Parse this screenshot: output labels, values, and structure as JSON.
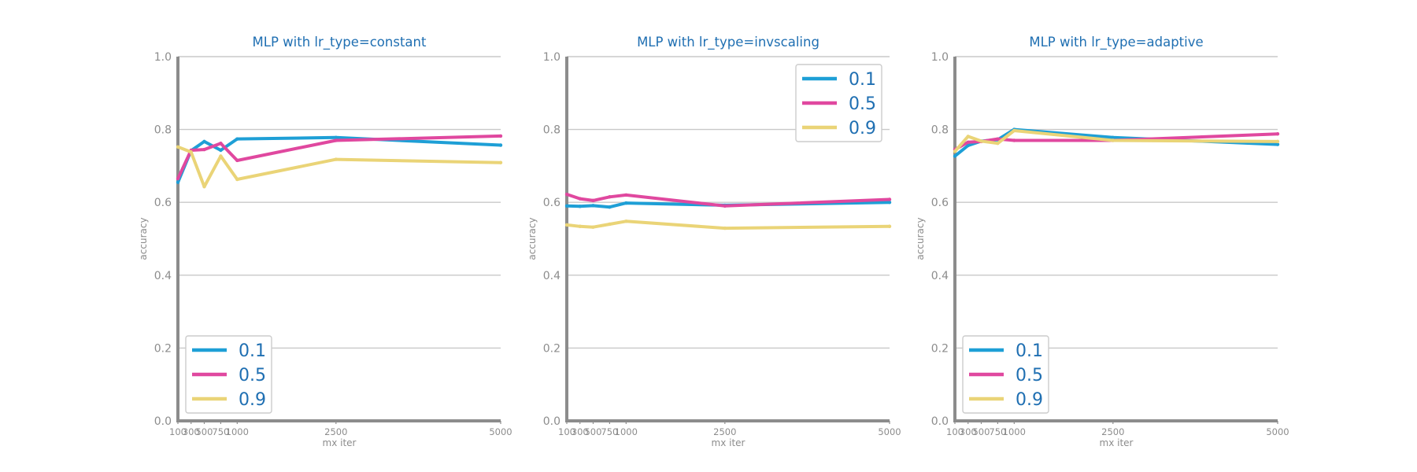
{
  "colors": {
    "title": "#1f6fb2",
    "axis": "#8c8c8c",
    "grid": "#c8c8c8",
    "tick_text": "#8c8c8c",
    "legend_text": "#1f6fb2",
    "series": [
      "#1e9fd6",
      "#e0489f",
      "#ead477"
    ]
  },
  "chart_data": [
    {
      "type": "line",
      "title": "MLP with lr_type=constant",
      "xlabel": "mx iter",
      "ylabel": "accuracy",
      "x": [
        100,
        300,
        500,
        750,
        1000,
        2500,
        5000
      ],
      "x_tick_labels": [
        "100",
        "300",
        "500",
        "750",
        "1000",
        "2500",
        "5000"
      ],
      "ylim": [
        0,
        1
      ],
      "y_ticks": [
        "0.0",
        "0.2",
        "0.4",
        "0.6",
        "0.8",
        "1.0"
      ],
      "grid": "horizontal",
      "legend_position": "lower-left",
      "series": [
        {
          "name": "0.1",
          "values": [
            0.655,
            0.742,
            0.767,
            0.743,
            0.774,
            0.778,
            0.757
          ]
        },
        {
          "name": "0.5",
          "values": [
            0.665,
            0.743,
            0.745,
            0.762,
            0.715,
            0.77,
            0.782
          ]
        },
        {
          "name": "0.9",
          "values": [
            0.752,
            0.738,
            0.643,
            0.727,
            0.663,
            0.718,
            0.709
          ]
        }
      ]
    },
    {
      "type": "line",
      "title": "MLP with lr_type=invscaling",
      "xlabel": "mx iter",
      "ylabel": "accuracy",
      "x": [
        100,
        300,
        500,
        750,
        1000,
        2500,
        5000
      ],
      "x_tick_labels": [
        "100",
        "300",
        "500",
        "750",
        "1000",
        "2500",
        "5000"
      ],
      "ylim": [
        0,
        1
      ],
      "y_ticks": [
        "0.0",
        "0.2",
        "0.4",
        "0.6",
        "0.8",
        "1.0"
      ],
      "grid": "horizontal",
      "legend_position": "upper-right",
      "series": [
        {
          "name": "0.1",
          "values": [
            0.59,
            0.589,
            0.591,
            0.587,
            0.598,
            0.592,
            0.6
          ]
        },
        {
          "name": "0.5",
          "values": [
            0.622,
            0.61,
            0.605,
            0.615,
            0.62,
            0.59,
            0.608
          ]
        },
        {
          "name": "0.9",
          "values": [
            0.538,
            0.534,
            0.532,
            0.54,
            0.548,
            0.529,
            0.534
          ]
        }
      ]
    },
    {
      "type": "line",
      "title": "MLP with lr_type=adaptive",
      "xlabel": "mx iter",
      "ylabel": "accuracy",
      "x": [
        100,
        300,
        500,
        750,
        1000,
        2500,
        5000
      ],
      "x_tick_labels": [
        "100",
        "300",
        "500",
        "750",
        "1000",
        "2500",
        "5000"
      ],
      "ylim": [
        0,
        1
      ],
      "y_ticks": [
        "0.0",
        "0.2",
        "0.4",
        "0.6",
        "0.8",
        "1.0"
      ],
      "grid": "horizontal",
      "legend_position": "lower-left",
      "series": [
        {
          "name": "0.1",
          "values": [
            0.727,
            0.756,
            0.768,
            0.772,
            0.8,
            0.778,
            0.759
          ]
        },
        {
          "name": "0.5",
          "values": [
            0.745,
            0.765,
            0.767,
            0.774,
            0.77,
            0.77,
            0.788
          ]
        },
        {
          "name": "0.9",
          "values": [
            0.74,
            0.781,
            0.768,
            0.762,
            0.797,
            0.77,
            0.767
          ]
        }
      ]
    }
  ]
}
